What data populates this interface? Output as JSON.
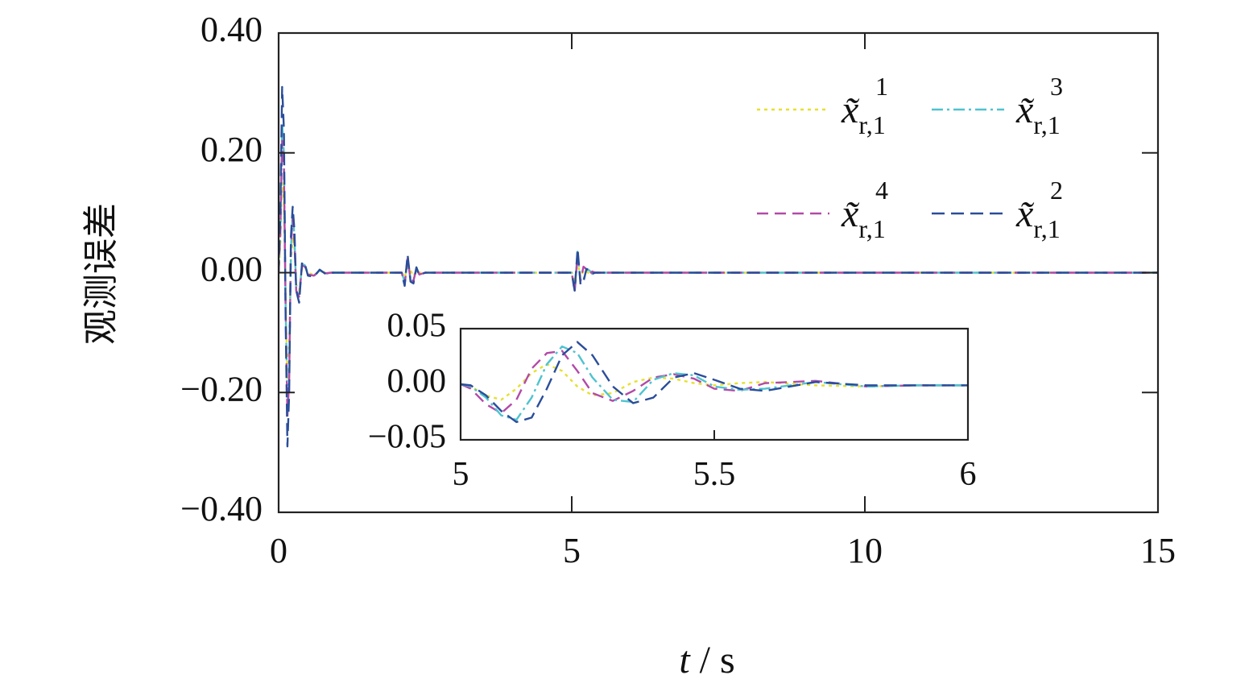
{
  "chart_data": [
    {
      "type": "line",
      "title": "",
      "xlabel_var": "t",
      "xlabel_sep": " / ",
      "xlabel_unit": "s",
      "ylabel": "观测误差",
      "xlim": [
        0,
        15
      ],
      "ylim": [
        -0.4,
        0.4
      ],
      "x_ticks": [
        0,
        5,
        10,
        15
      ],
      "x_tick_labels": [
        "0",
        "5",
        "10",
        "15"
      ],
      "y_ticks": [
        -0.4,
        -0.2,
        0,
        0.2,
        0.4
      ],
      "y_tick_labels": [
        "−0.40",
        "−0.20",
        "0.00",
        "0.20",
        "0.40"
      ],
      "grid": false,
      "legend_placement": "top-right",
      "series": [
        {
          "name_base": "x̃",
          "sup": "1",
          "sub": "r,1",
          "color": "#e6e02e",
          "dash": "4,5",
          "x": [
            0,
            0.03,
            0.06,
            0.09,
            0.12,
            0.15,
            0.18,
            0.21,
            0.24,
            0.27,
            0.3,
            0.35,
            0.4,
            0.45,
            0.5,
            0.6,
            0.7,
            0.8,
            0.9,
            1.0,
            1.2,
            1.4,
            1.6,
            1.8,
            2.0,
            2.1,
            2.15,
            2.2,
            2.25,
            2.3,
            2.35,
            2.4,
            2.5,
            2.6,
            2.8,
            3.0,
            4.0,
            5.0,
            5.05,
            5.1,
            5.15,
            5.2,
            5.25,
            5.3,
            5.35,
            5.4,
            5.5,
            5.6,
            6.0,
            8.0,
            10.0,
            12.0,
            15.0
          ],
          "y": [
            0,
            0.05,
            0.15,
            0.12,
            -0.05,
            -0.18,
            -0.12,
            0.02,
            0.06,
            0.04,
            -0.02,
            -0.03,
            0.01,
            0.01,
            0.0,
            -0.004,
            0.003,
            0.0,
            0.0,
            0.0,
            0.0,
            0.0,
            0.0,
            0.0,
            0.0,
            0.0,
            -0.008,
            0.01,
            0.004,
            -0.006,
            0.003,
            0.0,
            0.0,
            0.0,
            0.0,
            0.0,
            0.0,
            0.0,
            -0.015,
            0.018,
            -0.008,
            0.004,
            0.003,
            -0.002,
            0.001,
            0.0,
            0.0,
            0.0,
            0.0,
            0.0,
            0.0,
            0.0,
            0.0
          ]
        },
        {
          "name_base": "x̃",
          "sup": "3",
          "sub": "r,1",
          "color": "#4fc3cf",
          "dash": "14,5,3,5",
          "x": [
            0,
            0.03,
            0.06,
            0.09,
            0.12,
            0.15,
            0.18,
            0.21,
            0.24,
            0.27,
            0.3,
            0.35,
            0.4,
            0.45,
            0.5,
            0.6,
            0.7,
            0.8,
            0.9,
            1.0,
            1.2,
            1.4,
            1.6,
            1.8,
            2.0,
            2.1,
            2.15,
            2.2,
            2.25,
            2.3,
            2.35,
            2.4,
            2.5,
            2.6,
            2.8,
            3.0,
            4.0,
            5.0,
            5.05,
            5.1,
            5.15,
            5.2,
            5.25,
            5.3,
            5.35,
            5.4,
            5.5,
            5.6,
            6.0,
            8.0,
            10.0,
            12.0,
            15.0
          ],
          "y": [
            0,
            0.08,
            0.25,
            0.2,
            -0.06,
            -0.22,
            -0.17,
            0.04,
            0.1,
            0.06,
            -0.03,
            -0.04,
            0.015,
            0.012,
            -0.004,
            -0.006,
            0.004,
            -0.002,
            0.0,
            0.0,
            0.0,
            0.0,
            0.0,
            0.0,
            0.0,
            0.0,
            -0.015,
            0.022,
            -0.01,
            -0.012,
            0.006,
            -0.003,
            0.0,
            0.0,
            0.0,
            0.0,
            0.0,
            0.0,
            -0.03,
            0.035,
            -0.015,
            -0.012,
            0.005,
            0.004,
            -0.002,
            0.0,
            0.0,
            0.0,
            0.0,
            0.0,
            0.0,
            0.0,
            0.0
          ]
        },
        {
          "name_base": "x̃",
          "sup": "4",
          "sub": "r,1",
          "color": "#b24aa8",
          "dash": "14,8",
          "x": [
            0,
            0.03,
            0.06,
            0.09,
            0.12,
            0.15,
            0.18,
            0.21,
            0.24,
            0.27,
            0.3,
            0.35,
            0.4,
            0.45,
            0.5,
            0.6,
            0.7,
            0.8,
            0.9,
            1.0,
            1.2,
            1.4,
            1.6,
            1.8,
            2.0,
            2.1,
            2.15,
            2.2,
            2.25,
            2.3,
            2.35,
            2.4,
            2.5,
            2.6,
            2.8,
            3.0,
            4.0,
            5.0,
            5.05,
            5.1,
            5.15,
            5.2,
            5.25,
            5.3,
            5.35,
            5.4,
            5.5,
            5.6,
            6.0,
            8.0,
            10.0,
            12.0,
            15.0
          ],
          "y": [
            0,
            0.07,
            0.22,
            0.18,
            -0.07,
            -0.24,
            -0.18,
            0.05,
            0.09,
            0.05,
            -0.03,
            -0.04,
            0.012,
            0.01,
            -0.003,
            -0.005,
            0.003,
            -0.001,
            0.0,
            0.0,
            0.0,
            0.0,
            0.0,
            0.0,
            0.0,
            0.0,
            -0.02,
            0.025,
            -0.012,
            -0.014,
            0.007,
            -0.003,
            0.0,
            0.0,
            0.0,
            0.0,
            0.0,
            0.0,
            -0.032,
            0.03,
            -0.014,
            0.01,
            0.006,
            -0.003,
            0.002,
            0.0,
            0.0,
            0.0,
            0.0,
            0.0,
            0.0,
            0.0,
            0.0
          ]
        },
        {
          "name_base": "x̃",
          "sup": "2",
          "sub": "r,1",
          "color": "#2a4d9a",
          "dash": "16,8",
          "x": [
            0,
            0.03,
            0.06,
            0.09,
            0.12,
            0.15,
            0.18,
            0.21,
            0.24,
            0.27,
            0.3,
            0.35,
            0.4,
            0.45,
            0.5,
            0.6,
            0.7,
            0.8,
            0.9,
            1.0,
            1.2,
            1.4,
            1.6,
            1.8,
            2.0,
            2.1,
            2.15,
            2.2,
            2.25,
            2.3,
            2.35,
            2.4,
            2.5,
            2.6,
            2.8,
            3.0,
            4.0,
            5.0,
            5.05,
            5.1,
            5.15,
            5.2,
            5.25,
            5.3,
            5.35,
            5.4,
            5.5,
            5.6,
            6.0,
            8.0,
            10.0,
            12.0,
            15.0
          ],
          "y": [
            0,
            0.1,
            0.31,
            0.24,
            -0.08,
            -0.29,
            -0.2,
            0.06,
            0.11,
            0.07,
            -0.03,
            -0.05,
            0.018,
            0.014,
            -0.005,
            -0.007,
            0.005,
            -0.002,
            0.0,
            0.0,
            0.0,
            0.0,
            0.0,
            0.0,
            0.0,
            0.0,
            -0.022,
            0.03,
            -0.015,
            -0.018,
            0.009,
            -0.004,
            0.0,
            0.0,
            0.0,
            0.0,
            0.0,
            0.0,
            -0.03,
            0.04,
            -0.02,
            -0.015,
            0.006,
            0.005,
            -0.002,
            0.0,
            0.0,
            0.0,
            0.0,
            0.0,
            0.0,
            0.0,
            0.0
          ]
        }
      ]
    },
    {
      "type": "line",
      "title": "",
      "xlim": [
        5,
        6
      ],
      "ylim": [
        -0.05,
        0.05
      ],
      "x_ticks": [
        5,
        5.5,
        6
      ],
      "x_tick_labels": [
        "5",
        "5.5",
        "6"
      ],
      "y_ticks": [
        -0.05,
        0,
        0.05
      ],
      "y_tick_labels": [
        "−0.05",
        "0.00",
        "0.05"
      ],
      "grid": false,
      "series": [
        {
          "ref": "x̃ r,1 1",
          "color": "#e6e02e",
          "dash": "4,5",
          "x": [
            5.0,
            5.02,
            5.05,
            5.08,
            5.11,
            5.14,
            5.17,
            5.2,
            5.23,
            5.26,
            5.3,
            5.34,
            5.38,
            5.42,
            5.46,
            5.5,
            5.55,
            5.6,
            5.7,
            5.8,
            5.9,
            6.0
          ],
          "y": [
            0.0,
            -0.002,
            -0.01,
            -0.014,
            -0.004,
            0.01,
            0.018,
            0.012,
            -0.002,
            -0.01,
            -0.008,
            0.002,
            0.006,
            0.005,
            0.001,
            -0.001,
            0.001,
            0.002,
            -0.001,
            -0.002,
            -0.001,
            -0.001
          ]
        },
        {
          "ref": "x̃ r,1 4",
          "color": "#b24aa8",
          "dash": "14,8",
          "x": [
            5.0,
            5.02,
            5.05,
            5.08,
            5.11,
            5.14,
            5.17,
            5.2,
            5.23,
            5.26,
            5.3,
            5.34,
            5.38,
            5.42,
            5.46,
            5.5,
            5.55,
            5.6,
            5.7,
            5.8,
            5.9,
            6.0
          ],
          "y": [
            0.0,
            -0.004,
            -0.018,
            -0.026,
            -0.014,
            0.014,
            0.028,
            0.03,
            0.012,
            -0.008,
            -0.015,
            -0.006,
            0.006,
            0.009,
            0.005,
            -0.004,
            -0.006,
            0.001,
            0.003,
            -0.002,
            -0.001,
            -0.001
          ]
        },
        {
          "ref": "x̃ r,1 3",
          "color": "#4fc3cf",
          "dash": "14,5,3,5",
          "x": [
            5.0,
            5.02,
            5.05,
            5.08,
            5.11,
            5.14,
            5.17,
            5.2,
            5.23,
            5.26,
            5.3,
            5.34,
            5.38,
            5.42,
            5.46,
            5.5,
            5.55,
            5.6,
            5.7,
            5.8,
            5.9,
            6.0
          ],
          "y": [
            0.0,
            -0.002,
            -0.012,
            -0.028,
            -0.032,
            -0.012,
            0.018,
            0.034,
            0.028,
            0.006,
            -0.014,
            -0.016,
            0.004,
            0.01,
            0.008,
            -0.002,
            -0.005,
            -0.004,
            0.002,
            -0.002,
            -0.001,
            -0.001
          ]
        },
        {
          "ref": "x̃ r,1 2",
          "color": "#2a4d9a",
          "dash": "16,8",
          "x": [
            5.0,
            5.02,
            5.05,
            5.08,
            5.11,
            5.14,
            5.17,
            5.2,
            5.23,
            5.26,
            5.3,
            5.34,
            5.38,
            5.42,
            5.46,
            5.5,
            5.55,
            5.6,
            5.7,
            5.8,
            5.9,
            6.0
          ],
          "y": [
            0.0,
            -0.001,
            -0.01,
            -0.024,
            -0.034,
            -0.03,
            -0.004,
            0.026,
            0.038,
            0.026,
            -0.002,
            -0.017,
            -0.012,
            0.006,
            0.01,
            0.004,
            -0.004,
            -0.006,
            0.002,
            -0.001,
            -0.001,
            -0.001
          ]
        }
      ]
    }
  ]
}
